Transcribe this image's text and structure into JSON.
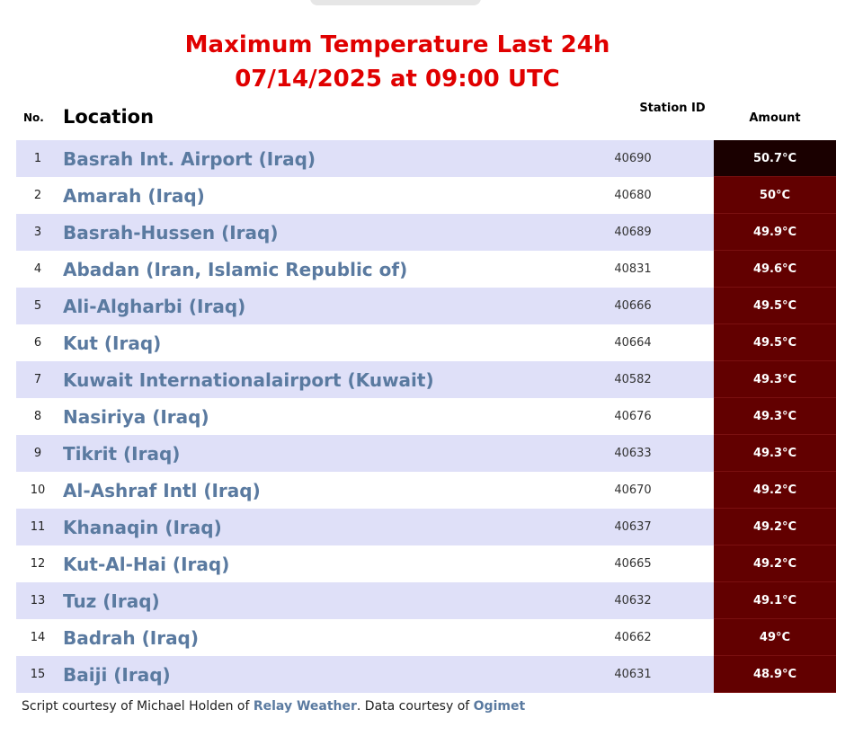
{
  "title_line1": "Maximum Temperature Last 24h",
  "title_line2": "07/14/2025 at 09:00 UTC",
  "headers": {
    "no": "No.",
    "location": "Location",
    "station": "Station ID",
    "amount": "Amount"
  },
  "colors": {
    "title": "#e00000",
    "location": "#5a7aa0",
    "amount_bg": "#620000",
    "amount_bg_top": "#1a0000",
    "row_alt": "#dfe0f8"
  },
  "rows": [
    {
      "no": "1",
      "location": "Basrah Int. Airport (Iraq)",
      "station": "40690",
      "amount": "50.7°C"
    },
    {
      "no": "2",
      "location": "Amarah (Iraq)",
      "station": "40680",
      "amount": "50°C"
    },
    {
      "no": "3",
      "location": "Basrah-Hussen (Iraq)",
      "station": "40689",
      "amount": "49.9°C"
    },
    {
      "no": "4",
      "location": "Abadan (Iran, Islamic Republic of)",
      "station": "40831",
      "amount": "49.6°C"
    },
    {
      "no": "5",
      "location": "Ali-Algharbi (Iraq)",
      "station": "40666",
      "amount": "49.5°C"
    },
    {
      "no": "6",
      "location": "Kut (Iraq)",
      "station": "40664",
      "amount": "49.5°C"
    },
    {
      "no": "7",
      "location": "Kuwait Internationalairport (Kuwait)",
      "station": "40582",
      "amount": "49.3°C"
    },
    {
      "no": "8",
      "location": "Nasiriya (Iraq)",
      "station": "40676",
      "amount": "49.3°C"
    },
    {
      "no": "9",
      "location": "Tikrit (Iraq)",
      "station": "40633",
      "amount": "49.3°C"
    },
    {
      "no": "10",
      "location": "Al-Ashraf Intl (Iraq)",
      "station": "40670",
      "amount": "49.2°C"
    },
    {
      "no": "11",
      "location": "Khanaqin (Iraq)",
      "station": "40637",
      "amount": "49.2°C"
    },
    {
      "no": "12",
      "location": "Kut-Al-Hai (Iraq)",
      "station": "40665",
      "amount": "49.2°C"
    },
    {
      "no": "13",
      "location": "Tuz (Iraq)",
      "station": "40632",
      "amount": "49.1°C"
    },
    {
      "no": "14",
      "location": "Badrah (Iraq)",
      "station": "40662",
      "amount": "49°C"
    },
    {
      "no": "15",
      "location": "Baiji (Iraq)",
      "station": "40631",
      "amount": "48.9°C"
    }
  ],
  "footer": {
    "prefix": "Script courtesy of  Michael Holden of ",
    "link1": "Relay Weather",
    "middle": ". Data courtesy of ",
    "link2": "Ogimet"
  }
}
